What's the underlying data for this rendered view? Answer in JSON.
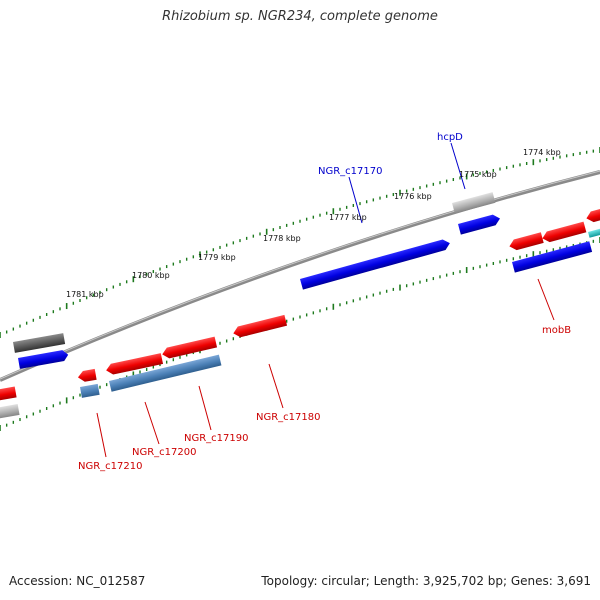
{
  "title": "Rhizobium sp. NGR234, complete genome",
  "footer": {
    "accession": "Accession: NC_012587",
    "summary": "Topology: circular; Length: 3,925,702 bp; Genes: 3,691"
  },
  "colors": {
    "genome_line": "#8a8a8a",
    "ruler_ticks": "#1e7a1e",
    "forward_gene": "#0000ee",
    "reverse_gene": "#ee0000",
    "steelblue_gene": "#4a7fb5",
    "grey_gene": "#b0b0b0",
    "dark_gene": "#5a5a5a",
    "cyan_gene": "#20c0c0",
    "label_blue": "#0000cc",
    "label_red": "#cc0000"
  },
  "ruler": [
    {
      "label": "1774 kbp"
    },
    {
      "label": "1775 kbp"
    },
    {
      "label": "1776 kbp"
    },
    {
      "label": "1777 kbp"
    },
    {
      "label": "1778 kbp"
    },
    {
      "label": "1779 kbp"
    },
    {
      "label": "1780 kbp"
    },
    {
      "label": "1781 kbp"
    }
  ],
  "gene_labels": [
    {
      "text": "hcpD",
      "strand": "forward"
    },
    {
      "text": "NGR_c17170",
      "strand": "forward"
    },
    {
      "text": "mobB",
      "strand": "reverse"
    },
    {
      "text": "NGR_c17180",
      "strand": "reverse"
    },
    {
      "text": "NGR_c17190",
      "strand": "reverse"
    },
    {
      "text": "NGR_c17200",
      "strand": "reverse"
    },
    {
      "text": "NGR_c17210",
      "strand": "reverse"
    }
  ]
}
